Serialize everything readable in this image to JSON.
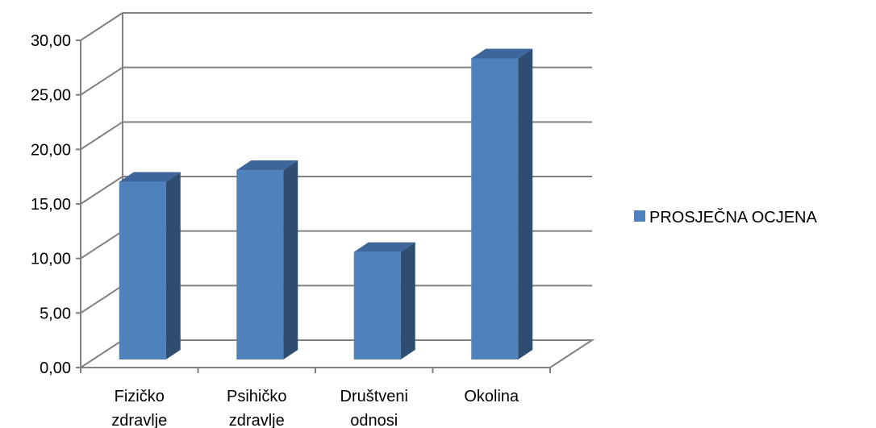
{
  "chart_data": {
    "type": "bar",
    "categories": [
      [
        "Fizičko",
        "zdravlje"
      ],
      [
        "Psihičko",
        "zdravlje"
      ],
      [
        "Društveni",
        "odnosi"
      ],
      [
        "Okolina"
      ]
    ],
    "series": [
      {
        "name": "PROSJEČNA OCJENA",
        "values": [
          16.7,
          17.8,
          10.1,
          28.3
        ]
      }
    ],
    "y_ticks": [
      "0,00",
      "5,00",
      "10,00",
      "15,00",
      "20,00",
      "25,00",
      "30,00"
    ],
    "ylim": [
      0,
      30
    ],
    "grid": true,
    "legend": "right",
    "colors": {
      "front": "#4F81BD",
      "side": "#2E4D70",
      "top": "#3D669A",
      "grid": "#808080"
    }
  }
}
